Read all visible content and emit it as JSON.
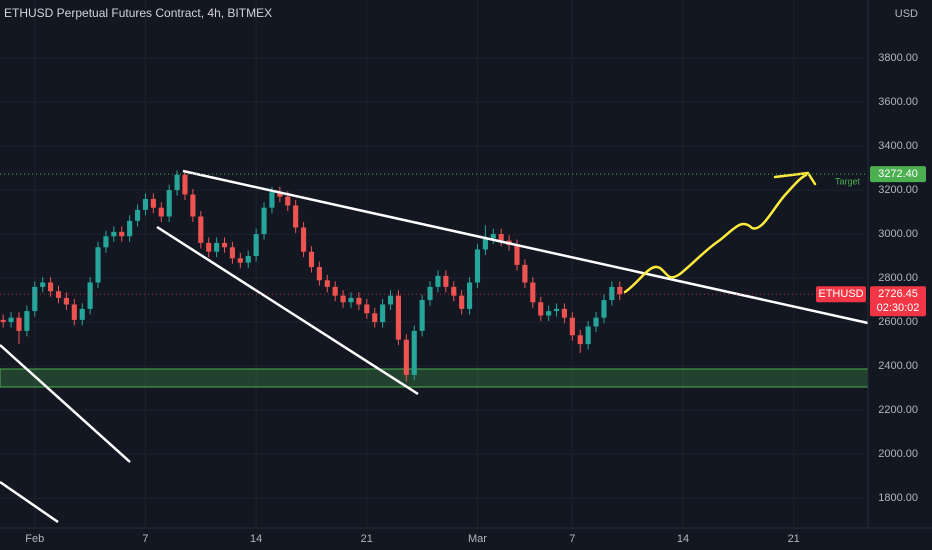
{
  "chart_data": {
    "type": "candlestick",
    "title": "ETHUSD Perpetual Futures Contract, 4h, BITMEX",
    "currency": "USD",
    "x": [
      -2,
      -1.5,
      -1,
      -0.5,
      0,
      0.5,
      1,
      1.5,
      2,
      2.5,
      3,
      3.5,
      4,
      4.5,
      5,
      5.5,
      6,
      6.5,
      7,
      7.5,
      8,
      8.5,
      9,
      9.5,
      10,
      10.5,
      11,
      11.5,
      12,
      12.5,
      13,
      13.5,
      14,
      14.5,
      15,
      15.5,
      16,
      16.5,
      17,
      17.5,
      18,
      18.5,
      19,
      19.5,
      20,
      20.5,
      21,
      21.5,
      22,
      22.5,
      23,
      23.5,
      24,
      24.5,
      25,
      25.5,
      26,
      26.5,
      27,
      27.5,
      28,
      28.5,
      29,
      29.5,
      30,
      30.5,
      31,
      31.5,
      32,
      32.5,
      33,
      33.5,
      34,
      34.5,
      35,
      35.5,
      36,
      36.5,
      37
    ],
    "open": [
      2610,
      2600,
      2620,
      2560,
      2650,
      2760,
      2780,
      2740,
      2710,
      2680,
      2610,
      2660,
      2780,
      2940,
      2990,
      3010,
      2990,
      3060,
      3110,
      3160,
      3120,
      3080,
      3200,
      3270,
      3180,
      3080,
      2960,
      2920,
      2960,
      2940,
      2890,
      2870,
      2900,
      3000,
      3120,
      3190,
      3170,
      3130,
      3030,
      2920,
      2850,
      2790,
      2760,
      2720,
      2690,
      2710,
      2680,
      2640,
      2600,
      2680,
      2720,
      2520,
      2360,
      2560,
      2700,
      2760,
      2810,
      2760,
      2720,
      2660,
      2780,
      2930,
      2980,
      3000,
      2970,
      2950,
      2860,
      2780,
      2690,
      2630,
      2650,
      2660,
      2620,
      2540,
      2500,
      2580,
      2620,
      2700,
      2760
    ],
    "high": [
      2635,
      2645,
      2645,
      2675,
      2785,
      2805,
      2805,
      2765,
      2735,
      2705,
      2685,
      2805,
      2965,
      3015,
      3035,
      3035,
      3085,
      3135,
      3185,
      3185,
      3145,
      3225,
      3290,
      3285,
      3205,
      3105,
      2985,
      2985,
      2985,
      2965,
      2915,
      2925,
      3025,
      3145,
      3215,
      3215,
      3195,
      3155,
      3055,
      2945,
      2875,
      2815,
      2785,
      2745,
      2735,
      2735,
      2705,
      2665,
      2705,
      2745,
      2745,
      2545,
      2585,
      2725,
      2785,
      2835,
      2835,
      2785,
      2745,
      2805,
      2955,
      3040,
      3025,
      3025,
      2995,
      2975,
      2885,
      2805,
      2715,
      2675,
      2685,
      2685,
      2645,
      2565,
      2605,
      2645,
      2725,
      2785,
      2785
    ],
    "low": [
      2575,
      2575,
      2500,
      2535,
      2625,
      2735,
      2715,
      2685,
      2655,
      2585,
      2585,
      2635,
      2755,
      2915,
      2965,
      2965,
      2965,
      3035,
      3085,
      3095,
      3055,
      3055,
      3175,
      3155,
      3055,
      2935,
      2895,
      2895,
      2915,
      2865,
      2845,
      2845,
      2875,
      2975,
      3095,
      3145,
      3105,
      3005,
      2895,
      2825,
      2765,
      2735,
      2695,
      2665,
      2665,
      2655,
      2615,
      2575,
      2575,
      2655,
      2495,
      2330,
      2335,
      2535,
      2675,
      2735,
      2735,
      2695,
      2635,
      2635,
      2755,
      2905,
      2955,
      2945,
      2925,
      2835,
      2755,
      2665,
      2605,
      2605,
      2625,
      2595,
      2515,
      2460,
      2475,
      2555,
      2595,
      2675,
      2700
    ],
    "close": [
      2600,
      2620,
      2560,
      2650,
      2760,
      2780,
      2740,
      2710,
      2680,
      2610,
      2660,
      2780,
      2940,
      2990,
      3010,
      2990,
      3060,
      3110,
      3160,
      3120,
      3080,
      3200,
      3270,
      3180,
      3080,
      2960,
      2920,
      2960,
      2940,
      2890,
      2870,
      2900,
      3000,
      3120,
      3190,
      3170,
      3130,
      3030,
      2920,
      2850,
      2790,
      2760,
      2720,
      2690,
      2710,
      2680,
      2640,
      2600,
      2680,
      2720,
      2520,
      2360,
      2560,
      2700,
      2760,
      2810,
      2760,
      2720,
      2660,
      2780,
      2930,
      2980,
      3000,
      2970,
      2950,
      2860,
      2780,
      2690,
      2630,
      2650,
      2660,
      2620,
      2540,
      2500,
      2580,
      2620,
      2700,
      2760,
      2726.45
    ],
    "up_color": "#26a69a",
    "down_color": "#ef5350",
    "xlim": [
      -2.2,
      52.7
    ],
    "xticks": [
      {
        "value": 0,
        "label": "Feb"
      },
      7,
      14,
      21,
      {
        "value": 28,
        "label": "Mar"
      },
      {
        "value": 34,
        "label": "7"
      },
      {
        "value": 41,
        "label": "14"
      },
      {
        "value": 48,
        "label": "21"
      }
    ],
    "ylim": [
      1664,
      4064
    ],
    "yticks": [
      {
        "value": 1800,
        "label": "1800.00"
      },
      {
        "value": 2000,
        "label": "2000.00"
      },
      {
        "value": 2200,
        "label": "2200.00"
      },
      {
        "value": 2400,
        "label": "2400.00"
      },
      {
        "value": 2600,
        "label": "2600.00"
      },
      {
        "value": 2800,
        "label": "2800.00"
      },
      {
        "value": 3000,
        "label": "3000.00"
      },
      {
        "value": 3200,
        "label": "3200.00"
      },
      {
        "value": 3400,
        "label": "3400.00"
      },
      {
        "value": 3600,
        "label": "3600.00"
      },
      {
        "value": 3800,
        "label": "3800.00"
      }
    ],
    "grid": true,
    "target": {
      "name": "Target",
      "value": 3272.4,
      "label": "3272.40",
      "color": "#4caf50"
    },
    "last_price": {
      "symbol": "ETHUSD",
      "value": 2726.45,
      "countdown": "02:30:02",
      "color": "#f23645"
    }
  }
}
